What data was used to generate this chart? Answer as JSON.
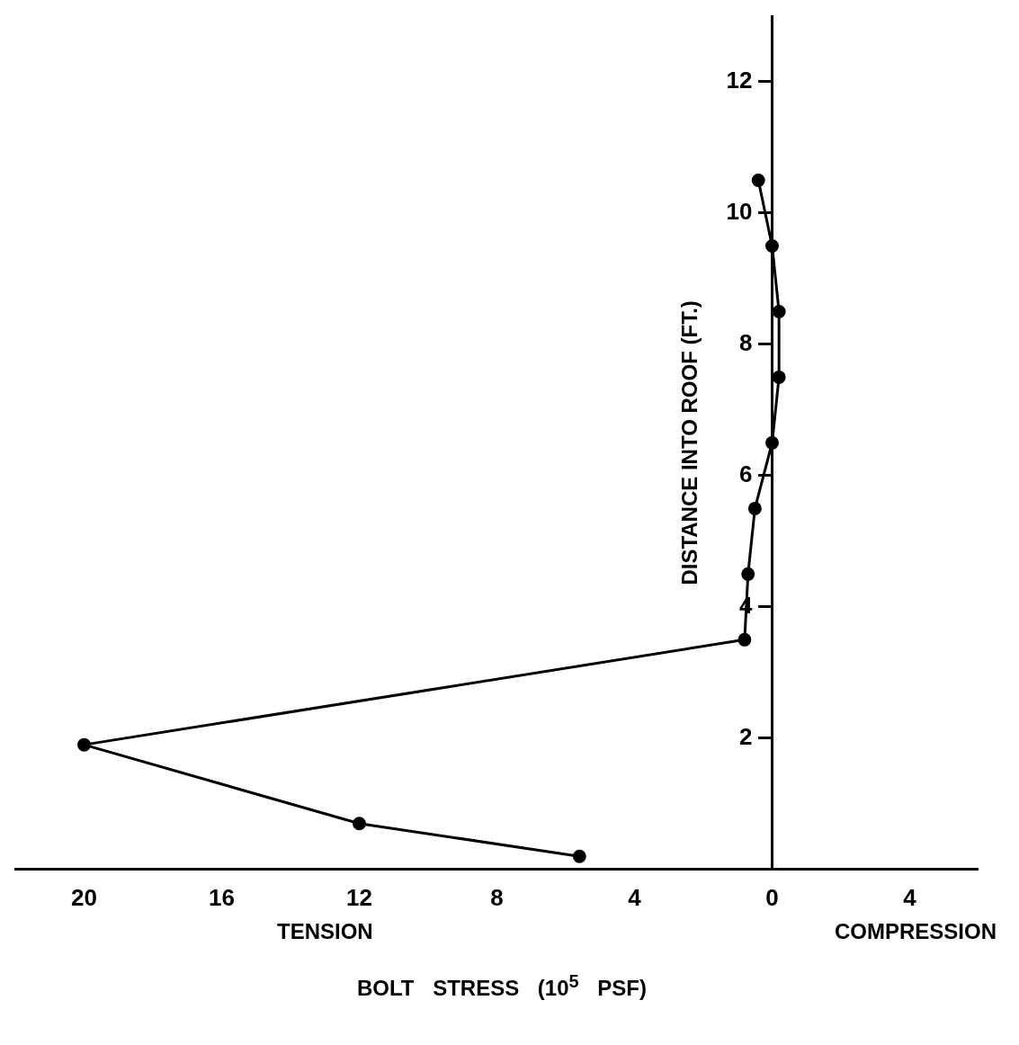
{
  "chart_data": {
    "type": "line",
    "xlabel": "BOLT STRESS (10$^{5}$ PSF)",
    "ylabel": "DISTANCE INTO ROOF (FT.)",
    "annotations": [
      "TENSION",
      "COMPRESSION"
    ],
    "series": [
      {
        "color": "#000000",
        "x": [
          0.4,
          0,
          -0.2,
          -0.2,
          0,
          0.5,
          0.7,
          0.8,
          20,
          12,
          5.6
        ],
        "values": [
          10.5,
          9.5,
          8.5,
          7.5,
          6.5,
          5.5,
          4.5,
          3.5,
          1.9,
          0.7,
          0.2
        ]
      }
    ],
    "xlim": [
      22,
      -6
    ],
    "xticks": [
      20,
      16,
      12,
      8,
      4,
      0,
      {
        "value": -4,
        "label": "4"
      }
    ],
    "ylim": [
      0,
      13
    ],
    "yticks": [
      2,
      4,
      6,
      8,
      10,
      12
    ],
    "grid": false,
    "legend": false,
    "marker": "circle",
    "line_style": "solid"
  }
}
